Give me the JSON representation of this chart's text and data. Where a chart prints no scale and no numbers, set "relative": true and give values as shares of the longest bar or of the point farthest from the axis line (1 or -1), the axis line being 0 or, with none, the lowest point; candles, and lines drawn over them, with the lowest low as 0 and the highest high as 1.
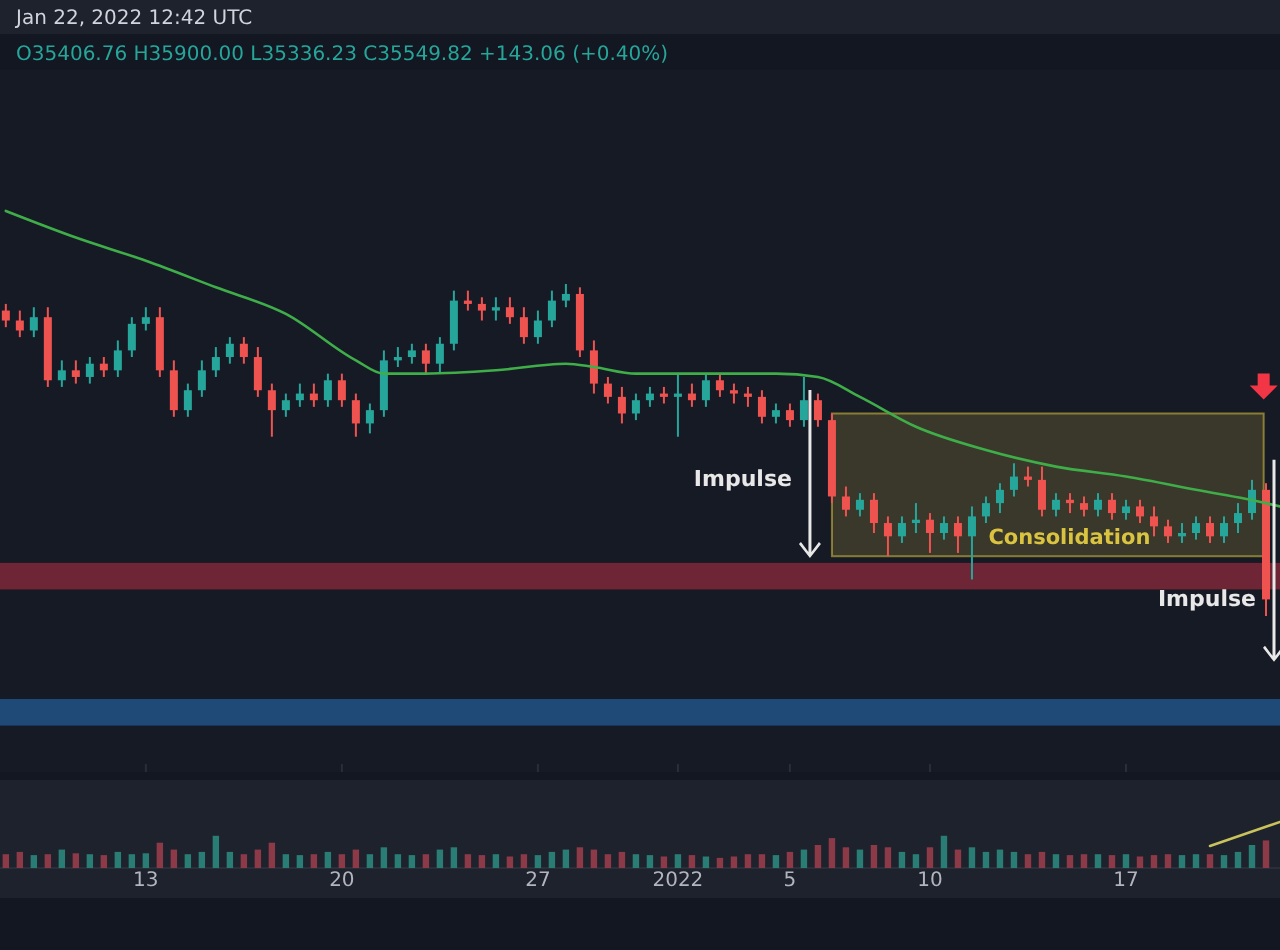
{
  "chart_data": [
    {
      "type": "candlestick",
      "title": "Jan 22, 2022 12:42 UTC",
      "subtitle": "O35406.76 H35900.00 L35336.23 C35549.82 +143.06 (+0.40%)",
      "relative": true,
      "tick_labels": false,
      "xlim": [
        "2021-12-07T19:00",
        "2022-01-22T12:00"
      ],
      "xticks": [
        {
          "value": "2021-12-13",
          "label": null
        },
        {
          "value": "2021-12-20",
          "label": null
        },
        {
          "value": "2021-12-27",
          "label": null
        },
        {
          "value": "2022-01-01",
          "label": null
        },
        {
          "value": "2022-01-05",
          "label": null
        },
        {
          "value": "2022-01-10",
          "label": null
        },
        {
          "value": "2022-01-17",
          "label": null
        }
      ],
      "x": [
        "2021-12-08T00:00",
        "2021-12-08T12:00",
        "2021-12-09T00:00",
        "2021-12-09T12:00",
        "2021-12-10T00:00",
        "2021-12-10T12:00",
        "2021-12-11T00:00",
        "2021-12-11T12:00",
        "2021-12-12T00:00",
        "2021-12-12T12:00",
        "2021-12-13T00:00",
        "2021-12-13T12:00",
        "2021-12-14T00:00",
        "2021-12-14T12:00",
        "2021-12-15T00:00",
        "2021-12-15T12:00",
        "2021-12-16T00:00",
        "2021-12-16T12:00",
        "2021-12-17T00:00",
        "2021-12-17T12:00",
        "2021-12-18T00:00",
        "2021-12-18T12:00",
        "2021-12-19T00:00",
        "2021-12-19T12:00",
        "2021-12-20T00:00",
        "2021-12-20T12:00",
        "2021-12-21T00:00",
        "2021-12-21T12:00",
        "2021-12-22T00:00",
        "2021-12-22T12:00",
        "2021-12-23T00:00",
        "2021-12-23T12:00",
        "2021-12-24T00:00",
        "2021-12-24T12:00",
        "2021-12-25T00:00",
        "2021-12-25T12:00",
        "2021-12-26T00:00",
        "2021-12-26T12:00",
        "2021-12-27T00:00",
        "2021-12-27T12:00",
        "2021-12-28T00:00",
        "2021-12-28T12:00",
        "2021-12-29T00:00",
        "2021-12-29T12:00",
        "2021-12-30T00:00",
        "2021-12-30T12:00",
        "2021-12-31T00:00",
        "2021-12-31T12:00",
        "2022-01-01T00:00",
        "2022-01-01T12:00",
        "2022-01-02T00:00",
        "2022-01-02T12:00",
        "2022-01-03T00:00",
        "2022-01-03T12:00",
        "2022-01-04T00:00",
        "2022-01-04T12:00",
        "2022-01-05T00:00",
        "2022-01-05T12:00",
        "2022-01-06T00:00",
        "2022-01-06T12:00",
        "2022-01-07T00:00",
        "2022-01-07T12:00",
        "2022-01-08T00:00",
        "2022-01-08T12:00",
        "2022-01-09T00:00",
        "2022-01-09T12:00",
        "2022-01-10T00:00",
        "2022-01-10T12:00",
        "2022-01-11T00:00",
        "2022-01-11T12:00",
        "2022-01-12T00:00",
        "2022-01-12T12:00",
        "2022-01-13T00:00",
        "2022-01-13T12:00",
        "2022-01-14T00:00",
        "2022-01-14T12:00",
        "2022-01-15T00:00",
        "2022-01-15T12:00",
        "2022-01-16T00:00",
        "2022-01-16T12:00",
        "2022-01-17T00:00",
        "2022-01-17T12:00",
        "2022-01-18T00:00",
        "2022-01-18T12:00",
        "2022-01-19T00:00",
        "2022-01-19T12:00",
        "2022-01-20T00:00",
        "2022-01-20T12:00",
        "2022-01-21T00:00",
        "2022-01-21T12:00",
        "2022-01-22T00:00"
      ],
      "ohlc": [
        [
          0.92,
          0.94,
          0.87,
          0.89
        ],
        [
          0.89,
          0.92,
          0.84,
          0.86
        ],
        [
          0.86,
          0.93,
          0.84,
          0.9
        ],
        [
          0.9,
          0.93,
          0.69,
          0.71
        ],
        [
          0.71,
          0.77,
          0.69,
          0.74
        ],
        [
          0.74,
          0.77,
          0.7,
          0.72
        ],
        [
          0.72,
          0.78,
          0.7,
          0.76
        ],
        [
          0.76,
          0.78,
          0.72,
          0.74
        ],
        [
          0.74,
          0.83,
          0.72,
          0.8
        ],
        [
          0.8,
          0.9,
          0.78,
          0.88
        ],
        [
          0.88,
          0.93,
          0.86,
          0.9
        ],
        [
          0.9,
          0.93,
          0.72,
          0.74
        ],
        [
          0.74,
          0.77,
          0.6,
          0.62
        ],
        [
          0.62,
          0.7,
          0.6,
          0.68
        ],
        [
          0.68,
          0.77,
          0.66,
          0.74
        ],
        [
          0.74,
          0.81,
          0.72,
          0.78
        ],
        [
          0.78,
          0.84,
          0.76,
          0.82
        ],
        [
          0.82,
          0.84,
          0.76,
          0.78
        ],
        [
          0.78,
          0.81,
          0.66,
          0.68
        ],
        [
          0.68,
          0.7,
          0.54,
          0.62
        ],
        [
          0.62,
          0.67,
          0.6,
          0.65
        ],
        [
          0.65,
          0.7,
          0.63,
          0.67
        ],
        [
          0.67,
          0.7,
          0.63,
          0.65
        ],
        [
          0.65,
          0.73,
          0.63,
          0.71
        ],
        [
          0.71,
          0.73,
          0.63,
          0.65
        ],
        [
          0.65,
          0.67,
          0.54,
          0.58
        ],
        [
          0.58,
          0.64,
          0.55,
          0.62
        ],
        [
          0.62,
          0.8,
          0.6,
          0.77
        ],
        [
          0.77,
          0.81,
          0.75,
          0.78
        ],
        [
          0.78,
          0.82,
          0.76,
          0.8
        ],
        [
          0.8,
          0.82,
          0.73,
          0.76
        ],
        [
          0.76,
          0.84,
          0.73,
          0.82
        ],
        [
          0.82,
          0.98,
          0.8,
          0.95
        ],
        [
          0.95,
          0.98,
          0.92,
          0.94
        ],
        [
          0.94,
          0.96,
          0.89,
          0.92
        ],
        [
          0.92,
          0.96,
          0.89,
          0.93
        ],
        [
          0.93,
          0.96,
          0.88,
          0.9
        ],
        [
          0.9,
          0.93,
          0.82,
          0.84
        ],
        [
          0.84,
          0.92,
          0.82,
          0.89
        ],
        [
          0.89,
          0.98,
          0.87,
          0.95
        ],
        [
          0.95,
          1,
          0.93,
          0.97
        ],
        [
          0.97,
          0.99,
          0.78,
          0.8
        ],
        [
          0.8,
          0.83,
          0.67,
          0.7
        ],
        [
          0.7,
          0.72,
          0.64,
          0.66
        ],
        [
          0.66,
          0.69,
          0.58,
          0.61
        ],
        [
          0.61,
          0.67,
          0.59,
          0.65
        ],
        [
          0.65,
          0.69,
          0.63,
          0.67
        ],
        [
          0.67,
          0.69,
          0.64,
          0.66
        ],
        [
          0.66,
          0.73,
          0.54,
          0.67
        ],
        [
          0.67,
          0.7,
          0.63,
          0.65
        ],
        [
          0.65,
          0.73,
          0.63,
          0.71
        ],
        [
          0.71,
          0.73,
          0.66,
          0.68
        ],
        [
          0.68,
          0.7,
          0.64,
          0.67
        ],
        [
          0.67,
          0.69,
          0.63,
          0.66
        ],
        [
          0.66,
          0.68,
          0.58,
          0.6
        ],
        [
          0.6,
          0.64,
          0.58,
          0.62
        ],
        [
          0.62,
          0.64,
          0.57,
          0.59
        ],
        [
          0.59,
          0.72,
          0.57,
          0.65
        ],
        [
          0.65,
          0.67,
          0.57,
          0.59
        ],
        [
          0.59,
          0.61,
          0.34,
          0.36
        ],
        [
          0.36,
          0.39,
          0.3,
          0.32
        ],
        [
          0.32,
          0.37,
          0.3,
          0.35
        ],
        [
          0.35,
          0.37,
          0.25,
          0.28
        ],
        [
          0.28,
          0.3,
          0.18,
          0.24
        ],
        [
          0.24,
          0.3,
          0.22,
          0.28
        ],
        [
          0.28,
          0.34,
          0.25,
          0.29
        ],
        [
          0.29,
          0.31,
          0.19,
          0.25
        ],
        [
          0.25,
          0.3,
          0.23,
          0.28
        ],
        [
          0.28,
          0.3,
          0.19,
          0.24
        ],
        [
          0.24,
          0.33,
          0.11,
          0.3
        ],
        [
          0.3,
          0.36,
          0.28,
          0.34
        ],
        [
          0.34,
          0.4,
          0.31,
          0.38
        ],
        [
          0.38,
          0.46,
          0.36,
          0.42
        ],
        [
          0.42,
          0.45,
          0.39,
          0.41
        ],
        [
          0.41,
          0.45,
          0.3,
          0.32
        ],
        [
          0.32,
          0.37,
          0.3,
          0.35
        ],
        [
          0.35,
          0.37,
          0.31,
          0.34
        ],
        [
          0.34,
          0.36,
          0.3,
          0.32
        ],
        [
          0.32,
          0.37,
          0.3,
          0.35
        ],
        [
          0.35,
          0.37,
          0.29,
          0.31
        ],
        [
          0.31,
          0.35,
          0.29,
          0.33
        ],
        [
          0.33,
          0.35,
          0.28,
          0.3
        ],
        [
          0.3,
          0.33,
          0.24,
          0.27
        ],
        [
          0.27,
          0.29,
          0.22,
          0.24
        ],
        [
          0.24,
          0.28,
          0.22,
          0.25
        ],
        [
          0.25,
          0.3,
          0.23,
          0.28
        ],
        [
          0.28,
          0.3,
          0.22,
          0.24
        ],
        [
          0.24,
          0.3,
          0.22,
          0.28
        ],
        [
          0.28,
          0.34,
          0.25,
          0.31
        ],
        [
          0.31,
          0.41,
          0.29,
          0.38
        ],
        [
          0.38,
          0.4,
          0,
          0.05
        ]
      ],
      "colors": [
        "#ef5350",
        "#ef5350",
        "#26a69a",
        "#ef5350",
        "#26a69a",
        "#ef5350",
        "#26a69a",
        "#ef5350",
        "#26a69a",
        "#26a69a",
        "#26a69a",
        "#ef5350",
        "#ef5350",
        "#26a69a",
        "#26a69a",
        "#26a69a",
        "#26a69a",
        "#ef5350",
        "#ef5350",
        "#ef5350",
        "#26a69a",
        "#26a69a",
        "#ef5350",
        "#26a69a",
        "#ef5350",
        "#ef5350",
        "#26a69a",
        "#26a69a",
        "#26a69a",
        "#26a69a",
        "#ef5350",
        "#26a69a",
        "#26a69a",
        "#ef5350",
        "#ef5350",
        "#26a69a",
        "#ef5350",
        "#ef5350",
        "#26a69a",
        "#26a69a",
        "#26a69a",
        "#ef5350",
        "#ef5350",
        "#ef5350",
        "#ef5350",
        "#26a69a",
        "#26a69a",
        "#ef5350",
        "#26a69a",
        "#ef5350",
        "#26a69a",
        "#ef5350",
        "#ef5350",
        "#ef5350",
        "#ef5350",
        "#26a69a",
        "#ef5350",
        "#26a69a",
        "#ef5350",
        "#ef5350",
        "#ef5350",
        "#26a69a",
        "#ef5350",
        "#ef5350",
        "#26a69a",
        "#26a69a",
        "#ef5350",
        "#26a69a",
        "#ef5350",
        "#26a69a",
        "#26a69a",
        "#26a69a",
        "#26a69a",
        "#ef5350",
        "#ef5350",
        "#26a69a",
        "#ef5350",
        "#ef5350",
        "#26a69a",
        "#ef5350",
        "#26a69a",
        "#ef5350",
        "#ef5350",
        "#ef5350",
        "#26a69a",
        "#26a69a",
        "#ef5350",
        "#26a69a",
        "#26a69a",
        "#26a69a",
        "#ef5350"
      ],
      "series": [
        {
          "type": "line",
          "color": "#3fae49",
          "x": [
            "2021-12-08T00:00",
            "2021-12-10T12:00",
            "2021-12-13T00:00",
            "2021-12-15T12:00",
            "2021-12-18T00:00",
            "2021-12-20T12:00",
            "2021-12-21T12:00",
            "2021-12-23T00:00",
            "2021-12-25T12:00",
            "2021-12-28T00:00",
            "2021-12-29T00:00",
            "2021-12-30T12:00",
            "2022-01-02T00:00",
            "2022-01-04T12:00",
            "2022-01-06T00:00",
            "2022-01-07T12:00",
            "2022-01-09T12:00",
            "2022-01-12T00:00",
            "2022-01-14T12:00",
            "2022-01-17T00:00",
            "2022-01-19T12:00",
            "2022-01-22T00:00",
            "2022-01-22T12:00"
          ],
          "values": [
            1.22,
            1.14,
            1.07,
            0.99,
            0.91,
            0.77,
            0.73,
            0.73,
            0.74,
            0.76,
            0.75,
            0.73,
            0.73,
            0.73,
            0.72,
            0.66,
            0.57,
            0.5,
            0.45,
            0.42,
            0.38,
            0.34,
            0.33
          ]
        }
      ],
      "bands": [
        {
          "axis": "y",
          "from": 0.08,
          "to": 0.16,
          "color": "#6e2535"
        },
        {
          "axis": "y",
          "from": -0.33,
          "to": -0.25,
          "color": "#1f4a78"
        },
        {
          "axis": "x",
          "from": "2022-01-06T12:00",
          "to": "2022-01-21T22:00",
          "label": "Consolidation",
          "color": "#d9c340"
        }
      ],
      "annotations": [
        "Impulse",
        "Impulse"
      ]
    },
    {
      "type": "bar",
      "relative": true,
      "tick_labels": "x",
      "xlim": [
        "2021-12-07T19:00",
        "2022-01-22T12:00"
      ],
      "xticks": [
        {
          "value": "2021-12-13",
          "label": "13"
        },
        {
          "value": "2021-12-20",
          "label": "20"
        },
        {
          "value": "2021-12-27",
          "label": "27"
        },
        {
          "value": "2022-01-01",
          "label": "2022"
        },
        {
          "value": "2022-01-05",
          "label": "5"
        },
        {
          "value": "2022-01-10",
          "label": "10"
        },
        {
          "value": "2022-01-17",
          "label": "17"
        }
      ],
      "x": [
        "2021-12-08T00:00",
        "2021-12-08T12:00",
        "2021-12-09T00:00",
        "2021-12-09T12:00",
        "2021-12-10T00:00",
        "2021-12-10T12:00",
        "2021-12-11T00:00",
        "2021-12-11T12:00",
        "2021-12-12T00:00",
        "2021-12-12T12:00",
        "2021-12-13T00:00",
        "2021-12-13T12:00",
        "2021-12-14T00:00",
        "2021-12-14T12:00",
        "2021-12-15T00:00",
        "2021-12-15T12:00",
        "2021-12-16T00:00",
        "2021-12-16T12:00",
        "2021-12-17T00:00",
        "2021-12-17T12:00",
        "2021-12-18T00:00",
        "2021-12-18T12:00",
        "2021-12-19T00:00",
        "2021-12-19T12:00",
        "2021-12-20T00:00",
        "2021-12-20T12:00",
        "2021-12-21T00:00",
        "2021-12-21T12:00",
        "2021-12-22T00:00",
        "2021-12-22T12:00",
        "2021-12-23T00:00",
        "2021-12-23T12:00",
        "2021-12-24T00:00",
        "2021-12-24T12:00",
        "2021-12-25T00:00",
        "2021-12-25T12:00",
        "2021-12-26T00:00",
        "2021-12-26T12:00",
        "2021-12-27T00:00",
        "2021-12-27T12:00",
        "2021-12-28T00:00",
        "2021-12-28T12:00",
        "2021-12-29T00:00",
        "2021-12-29T12:00",
        "2021-12-30T00:00",
        "2021-12-30T12:00",
        "2021-12-31T00:00",
        "2021-12-31T12:00",
        "2022-01-01T00:00",
        "2022-01-01T12:00",
        "2022-01-02T00:00",
        "2022-01-02T12:00",
        "2022-01-03T00:00",
        "2022-01-03T12:00",
        "2022-01-04T00:00",
        "2022-01-04T12:00",
        "2022-01-05T00:00",
        "2022-01-05T12:00",
        "2022-01-06T00:00",
        "2022-01-06T12:00",
        "2022-01-07T00:00",
        "2022-01-07T12:00",
        "2022-01-08T00:00",
        "2022-01-08T12:00",
        "2022-01-09T00:00",
        "2022-01-09T12:00",
        "2022-01-10T00:00",
        "2022-01-10T12:00",
        "2022-01-11T00:00",
        "2022-01-11T12:00",
        "2022-01-12T00:00",
        "2022-01-12T12:00",
        "2022-01-13T00:00",
        "2022-01-13T12:00",
        "2022-01-14T00:00",
        "2022-01-14T12:00",
        "2022-01-15T00:00",
        "2022-01-15T12:00",
        "2022-01-16T00:00",
        "2022-01-16T12:00",
        "2022-01-17T00:00",
        "2022-01-17T12:00",
        "2022-01-18T00:00",
        "2022-01-18T12:00",
        "2022-01-19T00:00",
        "2022-01-19T12:00",
        "2022-01-20T00:00",
        "2022-01-20T12:00",
        "2022-01-21T00:00",
        "2022-01-21T12:00",
        "2022-01-22T00:00"
      ],
      "values": [
        0.3,
        0.35,
        0.28,
        0.3,
        0.4,
        0.32,
        0.3,
        0.28,
        0.35,
        0.3,
        0.32,
        0.55,
        0.4,
        0.3,
        0.35,
        0.7,
        0.35,
        0.3,
        0.4,
        0.55,
        0.3,
        0.28,
        0.3,
        0.35,
        0.3,
        0.4,
        0.3,
        0.45,
        0.3,
        0.28,
        0.3,
        0.4,
        0.45,
        0.3,
        0.28,
        0.3,
        0.25,
        0.3,
        0.28,
        0.35,
        0.4,
        0.45,
        0.4,
        0.3,
        0.35,
        0.3,
        0.28,
        0.25,
        0.3,
        0.28,
        0.25,
        0.22,
        0.25,
        0.3,
        0.3,
        0.28,
        0.35,
        0.4,
        0.5,
        0.65,
        0.45,
        0.4,
        0.5,
        0.45,
        0.35,
        0.3,
        0.45,
        0.7,
        0.4,
        0.45,
        0.35,
        0.4,
        0.35,
        0.3,
        0.35,
        0.3,
        0.28,
        0.3,
        0.3,
        0.28,
        0.3,
        0.25,
        0.28,
        0.3,
        0.28,
        0.3,
        0.3,
        0.28,
        0.35,
        0.5,
        0.6
      ],
      "colors": [
        "#8c3a48",
        "#8c3a48",
        "#2a7d74",
        "#8c3a48",
        "#2a7d74",
        "#8c3a48",
        "#2a7d74",
        "#8c3a48",
        "#2a7d74",
        "#2a7d74",
        "#2a7d74",
        "#8c3a48",
        "#8c3a48",
        "#2a7d74",
        "#2a7d74",
        "#2a7d74",
        "#2a7d74",
        "#8c3a48",
        "#8c3a48",
        "#8c3a48",
        "#2a7d74",
        "#2a7d74",
        "#8c3a48",
        "#2a7d74",
        "#8c3a48",
        "#8c3a48",
        "#2a7d74",
        "#2a7d74",
        "#2a7d74",
        "#2a7d74",
        "#8c3a48",
        "#2a7d74",
        "#2a7d74",
        "#8c3a48",
        "#8c3a48",
        "#2a7d74",
        "#8c3a48",
        "#8c3a48",
        "#2a7d74",
        "#2a7d74",
        "#2a7d74",
        "#8c3a48",
        "#8c3a48",
        "#8c3a48",
        "#8c3a48",
        "#2a7d74",
        "#2a7d74",
        "#8c3a48",
        "#2a7d74",
        "#8c3a48",
        "#2a7d74",
        "#8c3a48",
        "#8c3a48",
        "#8c3a48",
        "#8c3a48",
        "#2a7d74",
        "#8c3a48",
        "#2a7d74",
        "#8c3a48",
        "#8c3a48",
        "#8c3a48",
        "#2a7d74",
        "#8c3a48",
        "#8c3a48",
        "#2a7d74",
        "#2a7d74",
        "#8c3a48",
        "#2a7d74",
        "#8c3a48",
        "#2a7d74",
        "#2a7d74",
        "#2a7d74",
        "#2a7d74",
        "#8c3a48",
        "#8c3a48",
        "#2a7d74",
        "#8c3a48",
        "#8c3a48",
        "#2a7d74",
        "#8c3a48",
        "#2a7d74",
        "#8c3a48",
        "#8c3a48",
        "#8c3a48",
        "#2a7d74",
        "#2a7d74",
        "#8c3a48",
        "#2a7d74",
        "#2a7d74",
        "#2a7d74",
        "#8c3a48"
      ],
      "series": [
        {
          "type": "line",
          "color": "#c9c35c",
          "x": [
            "2022-01-20T00:00",
            "2022-01-22T12:00"
          ],
          "values": [
            0.48,
            1
          ]
        }
      ]
    }
  ]
}
